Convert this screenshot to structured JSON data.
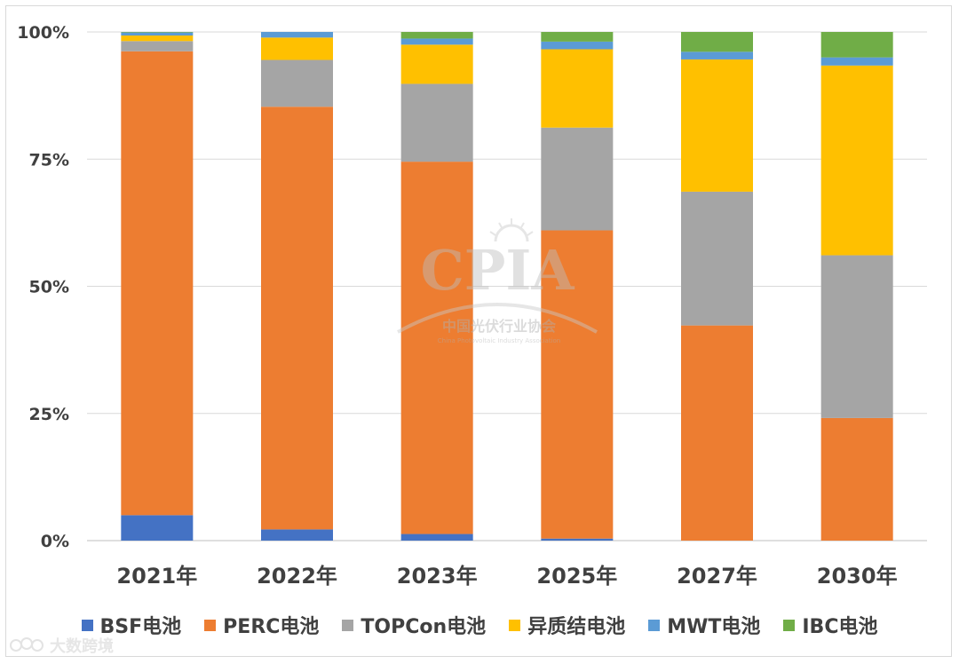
{
  "chart_data": {
    "type": "bar",
    "stacked": true,
    "normalized": true,
    "title": "",
    "xlabel": "",
    "ylabel": "",
    "ylim": [
      0,
      100
    ],
    "yticks": [
      "0%",
      "25%",
      "50%",
      "75%",
      "100%"
    ],
    "ytick_values": [
      0,
      25,
      50,
      75,
      100
    ],
    "grid": true,
    "legend_position": "bottom",
    "categories": [
      "2021年",
      "2022年",
      "2023年",
      "2025年",
      "2027年",
      "2030年"
    ],
    "series": [
      {
        "name": "BSF电池",
        "color": "#4472c4",
        "values": [
          5.0,
          2.2,
          1.3,
          0.4,
          0.0,
          0.0
        ]
      },
      {
        "name": "PERC电池",
        "color": "#ed7d31",
        "values": [
          91.2,
          83.1,
          73.2,
          60.6,
          42.3,
          24.1
        ]
      },
      {
        "name": "TOPCon电池",
        "color": "#a5a5a5",
        "values": [
          2.0,
          9.2,
          15.3,
          20.2,
          26.3,
          32.0
        ]
      },
      {
        "name": "异质结电池",
        "color": "#ffc000",
        "values": [
          1.1,
          4.4,
          7.7,
          15.4,
          26.0,
          37.3
        ]
      },
      {
        "name": "MWT电池",
        "color": "#5b9bd5",
        "values": [
          0.6,
          1.1,
          1.2,
          1.5,
          1.5,
          1.6
        ]
      },
      {
        "name": "IBC电池",
        "color": "#70ad47",
        "values": [
          0.1,
          0.0,
          1.3,
          1.9,
          3.9,
          5.0
        ]
      }
    ]
  },
  "watermark": {
    "logo": "CPIA",
    "name_cn": "中国光伏行业协会",
    "name_en": "China Photovoltaic Industry Association",
    "footer": "大数跨境"
  }
}
